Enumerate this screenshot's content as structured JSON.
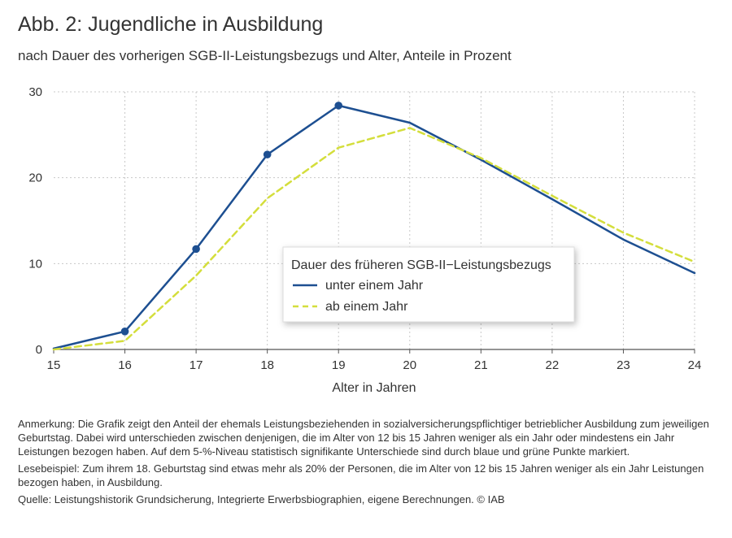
{
  "header": {
    "title": "Abb. 2: Jugendliche in Ausbildung",
    "subtitle": "nach Dauer des vorherigen SGB-II-Leistungsbezugs und Alter, Anteile in Prozent"
  },
  "chart_data": {
    "type": "line",
    "x": [
      15,
      16,
      17,
      18,
      19,
      20,
      21,
      22,
      23,
      24
    ],
    "xlabel": "Alter in Jahren",
    "ylabel": "",
    "xlim": [
      15,
      24
    ],
    "ylim": [
      0,
      30
    ],
    "y_ticks": [
      0,
      10,
      20,
      30
    ],
    "grid": true,
    "legend": {
      "title": "Dauer des früheren SGB-II−Leistungsbezugs",
      "placement": "center-right"
    },
    "series": [
      {
        "name": "unter einem Jahr",
        "color": "#1d4f91",
        "style": "solid",
        "values": [
          0.1,
          2.1,
          11.7,
          22.7,
          28.4,
          26.4,
          22.1,
          17.5,
          12.8,
          8.9
        ],
        "significant_markers": [
          false,
          true,
          true,
          true,
          true,
          false,
          false,
          false,
          false,
          false
        ]
      },
      {
        "name": "ab einem Jahr",
        "color": "#d4de3c",
        "style": "dashed",
        "values": [
          0.0,
          1.0,
          8.6,
          17.6,
          23.5,
          25.8,
          22.3,
          17.9,
          13.6,
          10.2
        ],
        "significant_markers": [
          false,
          false,
          false,
          false,
          false,
          false,
          false,
          false,
          false,
          false
        ]
      }
    ]
  },
  "notes": {
    "anmerkung": "Anmerkung: Die Grafik zeigt den Anteil der ehemals Leistungsbeziehenden in sozialversicherungspflichtiger betrieblicher Ausbildung zum jeweiligen Geburtstag. Dabei wird unterschieden zwischen denjenigen, die im Alter von 12 bis 15 Jahren weniger als ein Jahr oder mindestens ein Jahr Leistungen bezogen haben. Auf dem 5-%-Niveau statistisch signifikante Unterschiede sind durch blaue und grüne Punkte markiert.",
    "lesebeispiel": "Lesebeispiel: Zum ihrem 18. Geburtstag sind etwas mehr als 20% der Personen, die im Alter von 12 bis 15 Jahren weniger als ein Jahr Leistungen bezogen haben, in Ausbildung.",
    "quelle": "Quelle: Leistungshistorik Grundsicherung, Integrierte Erwerbsbiographien, eigene Berechnungen.  © IAB"
  }
}
